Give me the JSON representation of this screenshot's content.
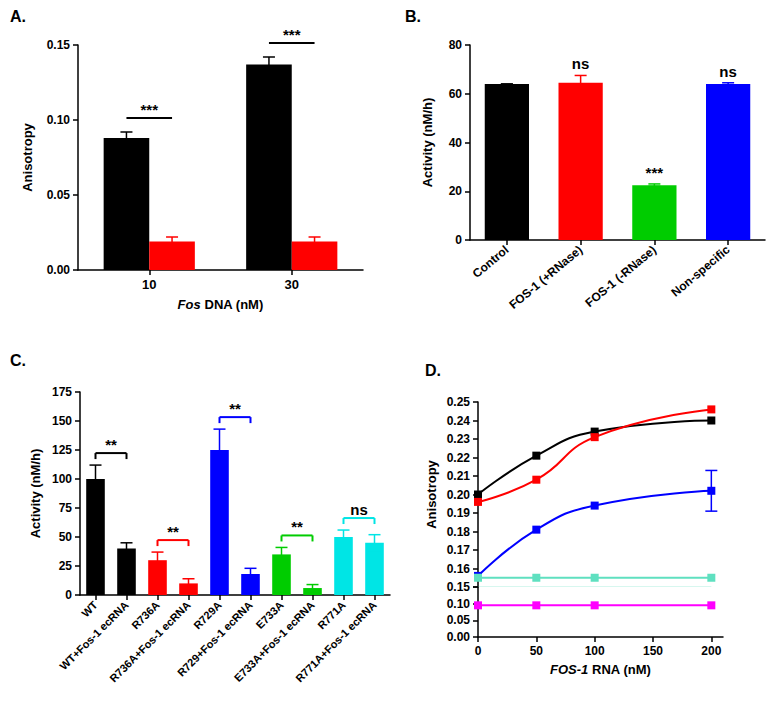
{
  "chart_data": [
    {
      "panel_label": "A.",
      "type": "bar",
      "x_label": "Fos DNA (nM)",
      "y_label": "Anisotropy",
      "categories": [
        "10",
        "30"
      ],
      "series": [
        {
          "color": "#000000",
          "values": [
            0.088,
            0.137
          ],
          "errors": [
            0.004,
            0.005
          ]
        },
        {
          "color": "#ff0000",
          "values": [
            0.019,
            0.019
          ],
          "errors": [
            0.003,
            0.003
          ]
        }
      ],
      "significance": [
        {
          "category": "10",
          "text": "***"
        },
        {
          "category": "30",
          "text": "***"
        }
      ],
      "ylim": [
        0,
        0.15
      ],
      "yticks": [
        {
          "value": 0,
          "label": "0.00"
        },
        0.05,
        {
          "value": 0.1,
          "label": "0.10"
        },
        0.15
      ],
      "grid": false
    },
    {
      "panel_label": "B.",
      "type": "bar",
      "y_label": "Activity (nM/h)",
      "categories": [
        "Control",
        "FOS-1 (+RNase)",
        "FOS-1 (-RNase)",
        "Non-specific"
      ],
      "values": [
        64,
        64.5,
        22.5,
        64
      ],
      "errors": [
        0,
        3,
        0.5,
        0.5
      ],
      "colors": [
        "#000000",
        "#ff0000",
        "#00cc00",
        "#0000ff"
      ],
      "annotations": [
        null,
        "ns",
        "***",
        "ns"
      ],
      "ylim": [
        0,
        80
      ],
      "yticks": [
        0,
        20,
        40,
        60,
        80
      ],
      "grid": false
    },
    {
      "panel_label": "C.",
      "type": "bar",
      "y_label": "Activity (nM/h)",
      "categories": [
        "WT",
        "WT+Fos-1 ecRNA",
        "R736A",
        "R736A+Fos-1 ecRNA",
        "R729A",
        "R729+Fos-1 ecRNA",
        "E733A",
        "E733A+Fos-1 ecRNA",
        "R771A",
        "R771A+Fos-1 ecRNA"
      ],
      "values": [
        100,
        40,
        30,
        10,
        125,
        18,
        35,
        6,
        50,
        45
      ],
      "errors": [
        12,
        5,
        7,
        4,
        18,
        5,
        6,
        3,
        6,
        7
      ],
      "colors": [
        "#000000",
        "#000000",
        "#ff0000",
        "#ff0000",
        "#0000ff",
        "#0000ff",
        "#00cc00",
        "#00cc00",
        "#00e5e5",
        "#00e5e5"
      ],
      "significance": [
        {
          "from": "WT",
          "to": "WT+Fos-1 ecRNA",
          "text": "**"
        },
        {
          "from": "R736A",
          "to": "R736A+Fos-1 ecRNA",
          "text": "**"
        },
        {
          "from": "R729A",
          "to": "R729+Fos-1 ecRNA",
          "text": "**"
        },
        {
          "from": "E733A",
          "to": "E733A+Fos-1 ecRNA",
          "text": "**"
        },
        {
          "from": "R771A",
          "to": "R771A+Fos-1 ecRNA",
          "text": "ns"
        }
      ],
      "ylim": [
        0,
        175
      ],
      "yticks": [
        0,
        25,
        50,
        75,
        100,
        125,
        150,
        175
      ],
      "grid": false
    },
    {
      "panel_label": "D.",
      "type": "line",
      "x_label": "FOS-1 RNA (nM)",
      "y_label": "Anisotropy",
      "x": [
        0,
        50,
        100,
        200
      ],
      "series": [
        {
          "color": "#000000",
          "values": [
            0.2,
            0.221,
            0.234,
            0.24
          ]
        },
        {
          "color": "#ff0000",
          "values": [
            0.196,
            0.208,
            0.231,
            0.246
          ]
        },
        {
          "color": "#0000ff",
          "values": [
            0.156,
            0.181,
            0.194,
            0.202
          ],
          "errors": [
            null,
            null,
            null,
            0.011
          ]
        },
        {
          "color": "#5fe0c0",
          "values": [
            0.155,
            0.155,
            0.155,
            0.155
          ]
        },
        {
          "color": "#ff00ff",
          "values": [
            0.095,
            0.095,
            0.095,
            0.095
          ]
        }
      ],
      "marker": "square",
      "line_style": "smooth",
      "xlim": [
        0,
        210
      ],
      "xticks": [
        0,
        50,
        100,
        150,
        200
      ],
      "ylim": [
        0,
        0.25
      ],
      "yticks": [
        {
          "value": 0,
          "label": "0.00"
        },
        0.05,
        {
          "value": 0.1,
          "label": "0.10"
        },
        0.15,
        0.16,
        0.17,
        0.18,
        0.19,
        {
          "value": 0.2,
          "label": "0.20"
        },
        0.21,
        0.22,
        0.23,
        0.24,
        0.25
      ],
      "grid": false
    }
  ]
}
